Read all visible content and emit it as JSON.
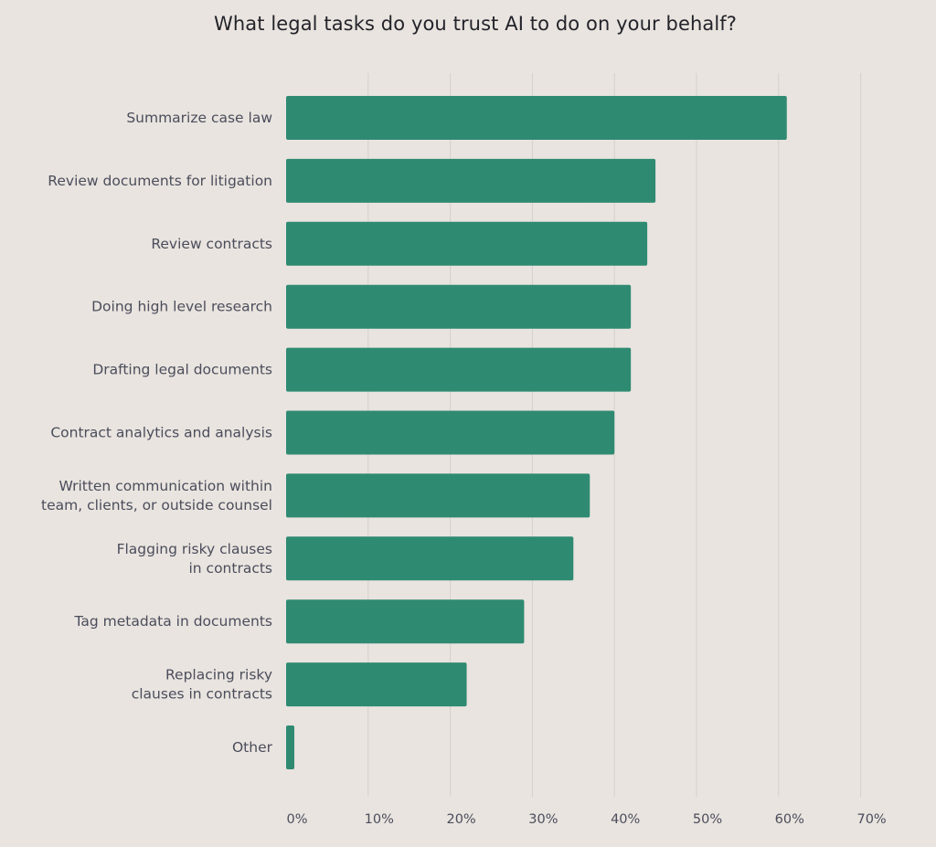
{
  "chart_data": {
    "type": "bar",
    "orientation": "horizontal",
    "title": "What legal tasks do you trust AI to do on your behalf?",
    "xlabel": "",
    "ylabel": "",
    "xlim": [
      0,
      70
    ],
    "ticks": [
      0,
      10,
      20,
      30,
      40,
      50,
      60,
      70
    ],
    "tick_labels": [
      "0%",
      "10%",
      "20%",
      "30%",
      "40%",
      "50%",
      "60%",
      "70%"
    ],
    "grid": true,
    "categories": [
      [
        "Summarize case law"
      ],
      [
        "Review documents for litigation"
      ],
      [
        "Review contracts"
      ],
      [
        "Doing high level research"
      ],
      [
        "Drafting legal documents"
      ],
      [
        "Contract analytics and analysis"
      ],
      [
        "Written communication within",
        "team, clients, or outside counsel"
      ],
      [
        "Flagging risky clauses",
        "in contracts"
      ],
      [
        "Tag metadata in documents"
      ],
      [
        "Replacing risky",
        "clauses in contracts"
      ],
      [
        "Other"
      ]
    ],
    "values": [
      61,
      45,
      44,
      42,
      42,
      40,
      37,
      35,
      29,
      22,
      1
    ],
    "bar_color": "#2f8a72"
  }
}
